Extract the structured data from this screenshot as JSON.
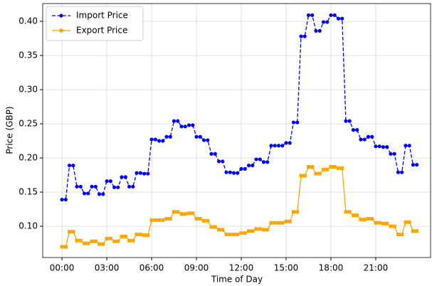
{
  "chart_data": {
    "type": "line",
    "x_label": "Time of Day",
    "y_label": "Price (GBP)",
    "x": [
      0,
      0.25,
      0.5,
      0.75,
      1,
      1.25,
      1.5,
      1.75,
      2,
      2.25,
      2.5,
      2.75,
      3,
      3.25,
      3.5,
      3.75,
      4,
      4.25,
      4.5,
      4.75,
      5,
      5.25,
      5.5,
      5.75,
      6,
      6.25,
      6.5,
      6.75,
      7,
      7.25,
      7.5,
      7.75,
      8,
      8.25,
      8.5,
      8.75,
      9,
      9.25,
      9.5,
      9.75,
      10,
      10.25,
      10.5,
      10.75,
      11,
      11.25,
      11.5,
      11.75,
      12,
      12.25,
      12.5,
      12.75,
      13,
      13.25,
      13.5,
      13.75,
      14,
      14.25,
      14.5,
      14.75,
      15,
      15.25,
      15.5,
      15.75,
      16,
      16.25,
      16.5,
      16.75,
      17,
      17.25,
      17.5,
      17.75,
      18,
      18.25,
      18.5,
      18.75,
      19,
      19.25,
      19.5,
      19.75,
      20,
      20.25,
      20.5,
      20.75,
      21,
      21.25,
      21.5,
      21.75,
      22,
      22.25,
      22.5,
      22.75,
      23,
      23.25,
      23.5,
      23.75
    ],
    "series": [
      {
        "name": "Import Price",
        "color": "#0000ff",
        "marker": "circle",
        "dashed": true,
        "values": [
          0.139,
          0.139,
          0.189,
          0.189,
          0.158,
          0.158,
          0.148,
          0.148,
          0.158,
          0.158,
          0.147,
          0.147,
          0.166,
          0.166,
          0.157,
          0.157,
          0.172,
          0.172,
          0.158,
          0.158,
          0.178,
          0.178,
          0.177,
          0.177,
          0.227,
          0.227,
          0.225,
          0.225,
          0.231,
          0.231,
          0.254,
          0.254,
          0.246,
          0.246,
          0.248,
          0.248,
          0.231,
          0.231,
          0.226,
          0.226,
          0.206,
          0.206,
          0.195,
          0.195,
          0.179,
          0.179,
          0.178,
          0.178,
          0.184,
          0.184,
          0.189,
          0.189,
          0.198,
          0.198,
          0.194,
          0.194,
          0.218,
          0.218,
          0.218,
          0.218,
          0.222,
          0.222,
          0.252,
          0.252,
          0.378,
          0.378,
          0.409,
          0.409,
          0.386,
          0.386,
          0.399,
          0.399,
          0.409,
          0.409,
          0.404,
          0.404,
          0.254,
          0.254,
          0.241,
          0.241,
          0.227,
          0.227,
          0.231,
          0.231,
          0.217,
          0.217,
          0.216,
          0.216,
          0.206,
          0.206,
          0.179,
          0.179,
          0.218,
          0.218,
          0.19,
          0.19
        ]
      },
      {
        "name": "Export Price",
        "color": "#ffa500",
        "marker": "square",
        "dashed": false,
        "values": [
          0.07,
          0.07,
          0.092,
          0.092,
          0.079,
          0.079,
          0.075,
          0.075,
          0.078,
          0.078,
          0.074,
          0.074,
          0.082,
          0.082,
          0.078,
          0.078,
          0.085,
          0.085,
          0.079,
          0.079,
          0.088,
          0.088,
          0.087,
          0.087,
          0.109,
          0.109,
          0.109,
          0.109,
          0.111,
          0.111,
          0.121,
          0.121,
          0.118,
          0.118,
          0.119,
          0.119,
          0.111,
          0.111,
          0.108,
          0.108,
          0.099,
          0.099,
          0.095,
          0.095,
          0.088,
          0.088,
          0.088,
          0.088,
          0.09,
          0.09,
          0.093,
          0.093,
          0.096,
          0.096,
          0.095,
          0.095,
          0.105,
          0.105,
          0.105,
          0.105,
          0.107,
          0.107,
          0.121,
          0.121,
          0.174,
          0.174,
          0.187,
          0.187,
          0.177,
          0.177,
          0.183,
          0.183,
          0.187,
          0.187,
          0.185,
          0.185,
          0.121,
          0.121,
          0.116,
          0.116,
          0.11,
          0.11,
          0.111,
          0.111,
          0.105,
          0.105,
          0.104,
          0.104,
          0.1,
          0.1,
          0.088,
          0.088,
          0.106,
          0.106,
          0.093,
          0.093
        ]
      }
    ],
    "xlim": [
      -1.29,
      24.67
    ],
    "xticks": [
      {
        "value": 0,
        "label": "00:00"
      },
      {
        "value": 3,
        "label": "03:00"
      },
      {
        "value": 6,
        "label": "06:00"
      },
      {
        "value": 9,
        "label": "09:00"
      },
      {
        "value": 12,
        "label": "12:00"
      },
      {
        "value": 15,
        "label": "15:00"
      },
      {
        "value": 18,
        "label": "18:00"
      },
      {
        "value": 21,
        "label": "21:00"
      }
    ],
    "ylim": [
      0.0542,
      0.426
    ],
    "yticks": [
      {
        "value": 0.1,
        "label": "0.10"
      },
      0.15,
      {
        "value": 0.2,
        "label": "0.20"
      },
      0.25,
      {
        "value": 0.3,
        "label": "0.30"
      },
      0.35,
      {
        "value": 0.4,
        "label": "0.40"
      }
    ],
    "grid": true,
    "legend": "upper-left"
  }
}
